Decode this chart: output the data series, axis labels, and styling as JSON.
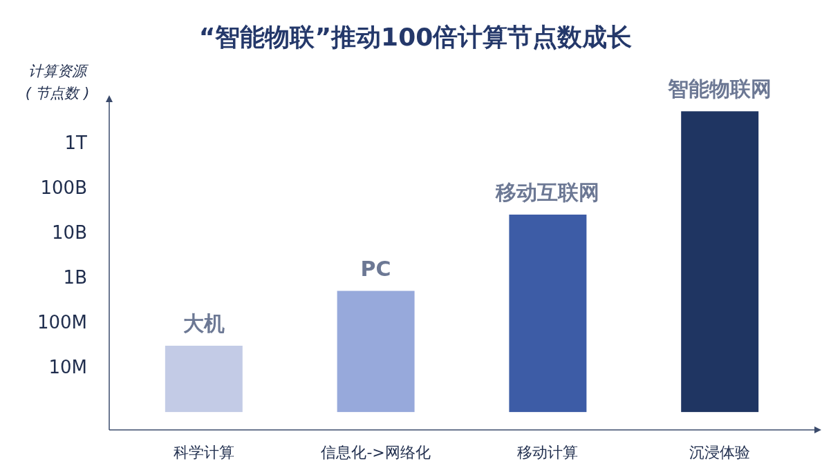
{
  "chart_data": {
    "type": "bar",
    "title": "“智能物联”推动100倍计算节点数成长",
    "ylabel": "计算资源\n( 节点数 )",
    "categories": [
      "科学计算",
      "信息化->网络化",
      "移动计算",
      "沉浸体验"
    ],
    "values": [
      29000000,
      499000000,
      24999000000,
      4999999000000
    ],
    "base": [
      1000000,
      1000000,
      1000000,
      1000000
    ],
    "colors": [
      "#c3cbe6",
      "#97a9db",
      "#3d5ca6",
      "#1f3562"
    ],
    "log": true,
    "ylim": [
      400000,
      8000000000000
    ],
    "yticks": [
      {
        "value": 10000000,
        "label": "10M"
      },
      {
        "value": 100000000,
        "label": "100M"
      },
      {
        "value": 1000000000,
        "label": "1B"
      },
      {
        "value": 10000000000,
        "label": "10B"
      },
      {
        "value": 100000000000,
        "label": "100B"
      },
      {
        "value": 1000000000000,
        "label": "1T"
      }
    ],
    "annotations": [
      {
        "text": "大机",
        "x": "科学计算",
        "y": 30000000
      },
      {
        "text": "PC",
        "x": "信息化->网络化",
        "y": 500000000
      },
      {
        "text": "移动互联网",
        "x": "移动计算",
        "y": 25000000000
      },
      {
        "text": "智能物联网",
        "x": "沉浸体验",
        "y": 5000000000000
      }
    ],
    "grid": false
  }
}
